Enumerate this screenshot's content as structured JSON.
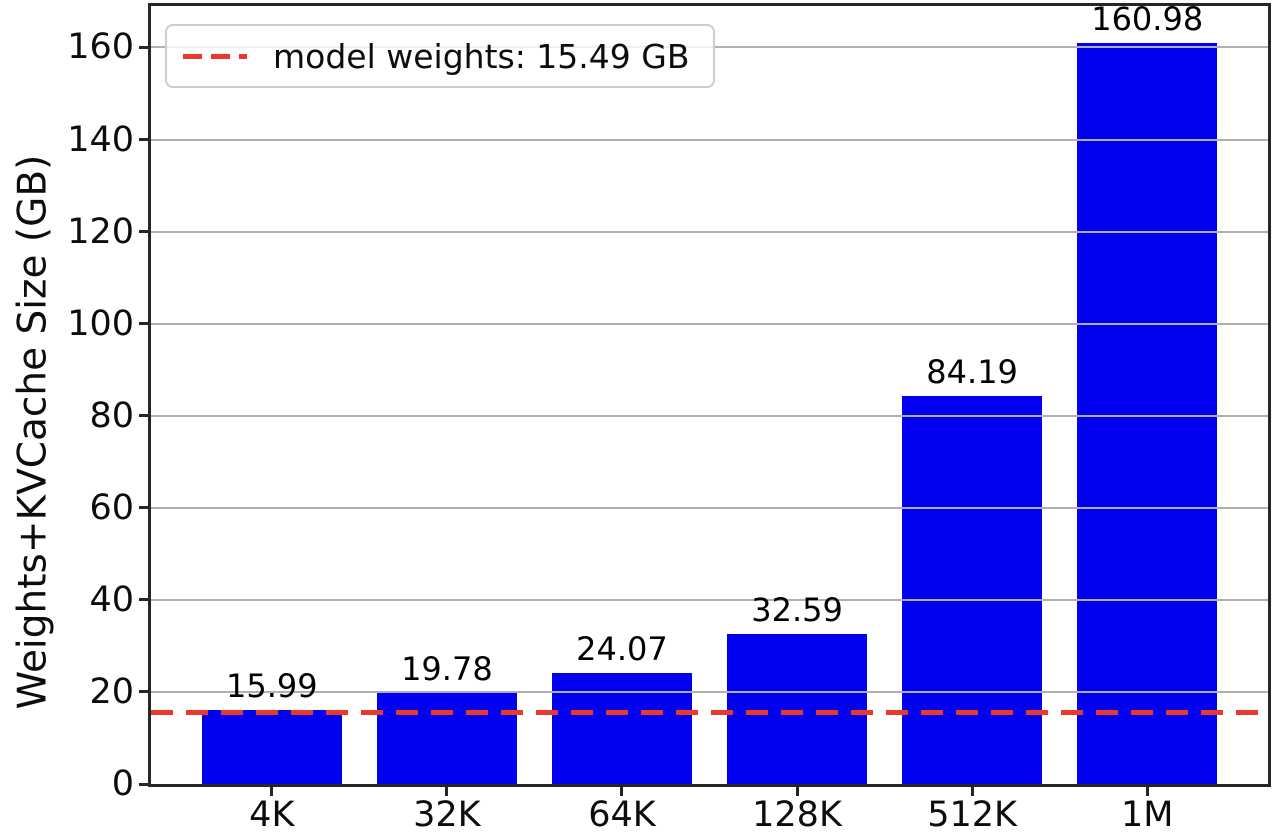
{
  "chart_data": {
    "type": "bar",
    "title": "",
    "categories": [
      "4K",
      "32K",
      "64K",
      "128K",
      "512K",
      "1M"
    ],
    "values": [
      15.99,
      19.78,
      24.07,
      32.59,
      84.19,
      160.98
    ],
    "value_labels": [
      "15.99",
      "19.78",
      "24.07",
      "32.59",
      "84.19",
      "160.98"
    ],
    "xlabel": "",
    "ylabel": "Weights+KVCache Size (GB)",
    "yticks": [
      0,
      20,
      40,
      60,
      80,
      100,
      120,
      140,
      160
    ],
    "ytick_labels": [
      "0",
      "20",
      "40",
      "60",
      "80",
      "100",
      "120",
      "140",
      "160"
    ],
    "ylim": [
      0,
      169.0
    ],
    "xlim": [
      -0.69,
      5.69
    ],
    "bar_width_units": 0.8,
    "grid": true,
    "legend": {
      "position": "upper left",
      "entries": [
        {
          "label": "model weights: 15.49 GB",
          "marker": "dashed-line",
          "color": "#e8392a"
        }
      ]
    },
    "ref_line": {
      "value": 15.49,
      "style": "dashed",
      "color": "#e8392a",
      "label": "model weights: 15.49 GB"
    },
    "colors": {
      "bar": "#0101f0",
      "ref_line": "#e8392a",
      "grid": "#b0b0b0",
      "spine": "#262626",
      "text": "#000000"
    }
  }
}
